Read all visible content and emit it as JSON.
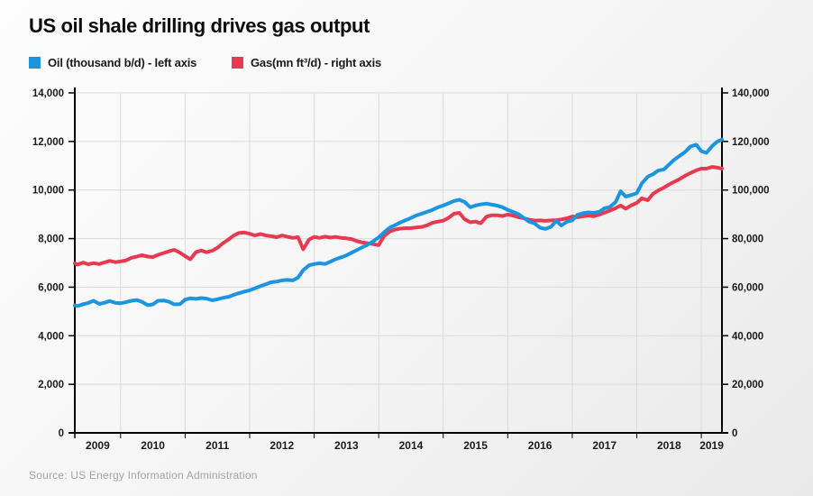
{
  "title": "US oil shale drilling drives gas output",
  "legend": {
    "items": [
      {
        "label": "Oil (thousand b/d) - left axis",
        "color": "#1b95e0"
      },
      {
        "label": "Gas(mn ft³/d) - right axis",
        "color": "#e73a50"
      }
    ],
    "position": "top-left"
  },
  "source": "Source: US Energy Information Administration",
  "colors": {
    "oil_line": "#1b95e0",
    "gas_line": "#e73a50",
    "axis": "#000000",
    "gridline": "#d9d9d9",
    "tick_text": "#1a1a1a",
    "source_text": "#a3a3a3"
  },
  "chart_data": {
    "type": "line",
    "title": "US oil shale drilling drives gas output",
    "grid": true,
    "legend_position": "top-left",
    "x_axis": {
      "tick_labels": [
        "2009",
        "2010",
        "2011",
        "2012",
        "2013",
        "2014",
        "2015",
        "2016",
        "2017",
        "2018",
        "2019"
      ],
      "gridline_years": [
        2010,
        2011,
        2012,
        2013,
        2014,
        2015,
        2016,
        2017,
        2018,
        2019
      ],
      "domain": [
        2009.29,
        2019.32
      ]
    },
    "left_axis": {
      "label": "Oil (thousand b/d)",
      "range": [
        0,
        14000
      ],
      "tick_values": [
        0,
        2000,
        4000,
        6000,
        8000,
        10000,
        12000,
        14000
      ],
      "tick_labels": [
        "0",
        "2,000",
        "4,000",
        "6,000",
        "8,000",
        "10,000",
        "12,000",
        "14,000"
      ]
    },
    "right_axis": {
      "label": "Gas (mn ft³/d)",
      "range": [
        0,
        140000
      ],
      "tick_values": [
        0,
        20000,
        40000,
        60000,
        80000,
        100000,
        120000,
        140000
      ],
      "tick_labels": [
        "0",
        "20,000",
        "40,000",
        "60,000",
        "80,000",
        "100,000",
        "120,000",
        "140,000"
      ]
    },
    "series": [
      {
        "name": "Gas(mn ft³/d) - right axis",
        "axis": "right",
        "color": "#e73a50",
        "points": [
          [
            2009.29,
            69800
          ],
          [
            2009.33,
            69300
          ],
          [
            2009.42,
            70100
          ],
          [
            2009.5,
            69400
          ],
          [
            2009.58,
            69900
          ],
          [
            2009.67,
            69500
          ],
          [
            2009.75,
            70200
          ],
          [
            2009.83,
            70800
          ],
          [
            2009.92,
            70300
          ],
          [
            2010.0,
            70600
          ],
          [
            2010.08,
            71000
          ],
          [
            2010.17,
            72100
          ],
          [
            2010.25,
            72600
          ],
          [
            2010.33,
            73200
          ],
          [
            2010.42,
            72600
          ],
          [
            2010.5,
            72400
          ],
          [
            2010.58,
            73300
          ],
          [
            2010.67,
            74100
          ],
          [
            2010.75,
            74800
          ],
          [
            2010.83,
            75400
          ],
          [
            2010.92,
            74200
          ],
          [
            2011.0,
            72800
          ],
          [
            2011.08,
            71500
          ],
          [
            2011.17,
            74500
          ],
          [
            2011.25,
            75100
          ],
          [
            2011.33,
            74400
          ],
          [
            2011.42,
            75000
          ],
          [
            2011.5,
            76200
          ],
          [
            2011.58,
            78000
          ],
          [
            2011.67,
            79600
          ],
          [
            2011.75,
            81200
          ],
          [
            2011.83,
            82300
          ],
          [
            2011.92,
            82500
          ],
          [
            2012.0,
            82000
          ],
          [
            2012.08,
            81300
          ],
          [
            2012.17,
            81900
          ],
          [
            2012.25,
            81300
          ],
          [
            2012.33,
            81000
          ],
          [
            2012.42,
            80600
          ],
          [
            2012.5,
            81300
          ],
          [
            2012.58,
            80800
          ],
          [
            2012.67,
            80300
          ],
          [
            2012.75,
            80600
          ],
          [
            2012.83,
            75600
          ],
          [
            2012.92,
            79600
          ],
          [
            2013.0,
            80700
          ],
          [
            2013.08,
            80300
          ],
          [
            2013.17,
            80800
          ],
          [
            2013.25,
            80400
          ],
          [
            2013.33,
            80700
          ],
          [
            2013.42,
            80300
          ],
          [
            2013.5,
            80100
          ],
          [
            2013.58,
            79800
          ],
          [
            2013.67,
            78900
          ],
          [
            2013.75,
            78400
          ],
          [
            2013.83,
            78100
          ],
          [
            2013.92,
            77700
          ],
          [
            2014.0,
            77300
          ],
          [
            2014.08,
            81000
          ],
          [
            2014.17,
            82900
          ],
          [
            2014.25,
            83700
          ],
          [
            2014.33,
            84100
          ],
          [
            2014.42,
            84300
          ],
          [
            2014.5,
            84300
          ],
          [
            2014.58,
            84600
          ],
          [
            2014.67,
            84800
          ],
          [
            2014.75,
            85500
          ],
          [
            2014.83,
            86500
          ],
          [
            2014.92,
            87000
          ],
          [
            2015.0,
            87400
          ],
          [
            2015.08,
            88500
          ],
          [
            2015.17,
            90300
          ],
          [
            2015.25,
            90600
          ],
          [
            2015.33,
            88000
          ],
          [
            2015.42,
            86700
          ],
          [
            2015.5,
            87000
          ],
          [
            2015.58,
            86300
          ],
          [
            2015.67,
            89000
          ],
          [
            2015.75,
            89600
          ],
          [
            2015.83,
            89600
          ],
          [
            2015.92,
            89300
          ],
          [
            2016.0,
            89900
          ],
          [
            2016.08,
            89500
          ],
          [
            2016.17,
            88800
          ],
          [
            2016.25,
            88400
          ],
          [
            2016.33,
            87800
          ],
          [
            2016.42,
            87400
          ],
          [
            2016.5,
            87500
          ],
          [
            2016.58,
            87300
          ],
          [
            2016.67,
            87500
          ],
          [
            2016.75,
            87600
          ],
          [
            2016.83,
            87900
          ],
          [
            2016.92,
            88400
          ],
          [
            2017.0,
            89100
          ],
          [
            2017.08,
            88800
          ],
          [
            2017.17,
            89200
          ],
          [
            2017.25,
            89500
          ],
          [
            2017.33,
            89200
          ],
          [
            2017.42,
            89900
          ],
          [
            2017.5,
            90700
          ],
          [
            2017.58,
            91500
          ],
          [
            2017.67,
            92500
          ],
          [
            2017.75,
            93600
          ],
          [
            2017.83,
            92300
          ],
          [
            2017.92,
            93800
          ],
          [
            2018.0,
            94700
          ],
          [
            2018.08,
            96600
          ],
          [
            2018.17,
            95800
          ],
          [
            2018.25,
            98400
          ],
          [
            2018.33,
            99800
          ],
          [
            2018.42,
            101000
          ],
          [
            2018.5,
            102300
          ],
          [
            2018.58,
            103400
          ],
          [
            2018.67,
            104600
          ],
          [
            2018.75,
            105900
          ],
          [
            2018.83,
            107000
          ],
          [
            2018.92,
            108100
          ],
          [
            2019.0,
            108800
          ],
          [
            2019.08,
            108800
          ],
          [
            2019.17,
            109500
          ],
          [
            2019.25,
            109200
          ],
          [
            2019.32,
            108800
          ]
        ]
      },
      {
        "name": "Oil (thousand b/d) - left axis",
        "axis": "left",
        "color": "#1b95e0",
        "points": [
          [
            2009.29,
            5250
          ],
          [
            2009.33,
            5220
          ],
          [
            2009.42,
            5300
          ],
          [
            2009.5,
            5350
          ],
          [
            2009.58,
            5440
          ],
          [
            2009.67,
            5310
          ],
          [
            2009.75,
            5360
          ],
          [
            2009.83,
            5430
          ],
          [
            2009.92,
            5350
          ],
          [
            2010.0,
            5340
          ],
          [
            2010.08,
            5380
          ],
          [
            2010.17,
            5440
          ],
          [
            2010.25,
            5470
          ],
          [
            2010.33,
            5400
          ],
          [
            2010.42,
            5260
          ],
          [
            2010.5,
            5290
          ],
          [
            2010.58,
            5440
          ],
          [
            2010.67,
            5450
          ],
          [
            2010.75,
            5400
          ],
          [
            2010.83,
            5290
          ],
          [
            2010.92,
            5300
          ],
          [
            2011.0,
            5490
          ],
          [
            2011.08,
            5540
          ],
          [
            2011.17,
            5520
          ],
          [
            2011.25,
            5550
          ],
          [
            2011.33,
            5530
          ],
          [
            2011.42,
            5460
          ],
          [
            2011.5,
            5500
          ],
          [
            2011.58,
            5560
          ],
          [
            2011.67,
            5600
          ],
          [
            2011.75,
            5680
          ],
          [
            2011.83,
            5750
          ],
          [
            2011.92,
            5820
          ],
          [
            2012.0,
            5870
          ],
          [
            2012.08,
            5950
          ],
          [
            2012.17,
            6050
          ],
          [
            2012.25,
            6120
          ],
          [
            2012.33,
            6200
          ],
          [
            2012.42,
            6230
          ],
          [
            2012.5,
            6280
          ],
          [
            2012.58,
            6300
          ],
          [
            2012.67,
            6280
          ],
          [
            2012.75,
            6400
          ],
          [
            2012.83,
            6700
          ],
          [
            2012.92,
            6900
          ],
          [
            2013.0,
            6950
          ],
          [
            2013.08,
            6980
          ],
          [
            2013.17,
            6960
          ],
          [
            2013.25,
            7050
          ],
          [
            2013.33,
            7150
          ],
          [
            2013.42,
            7230
          ],
          [
            2013.5,
            7310
          ],
          [
            2013.58,
            7420
          ],
          [
            2013.67,
            7540
          ],
          [
            2013.75,
            7650
          ],
          [
            2013.83,
            7750
          ],
          [
            2013.92,
            7900
          ],
          [
            2014.0,
            8050
          ],
          [
            2014.08,
            8250
          ],
          [
            2014.17,
            8450
          ],
          [
            2014.25,
            8550
          ],
          [
            2014.33,
            8660
          ],
          [
            2014.42,
            8760
          ],
          [
            2014.5,
            8850
          ],
          [
            2014.58,
            8950
          ],
          [
            2014.67,
            9030
          ],
          [
            2014.75,
            9100
          ],
          [
            2014.83,
            9180
          ],
          [
            2014.92,
            9290
          ],
          [
            2015.0,
            9360
          ],
          [
            2015.08,
            9450
          ],
          [
            2015.17,
            9550
          ],
          [
            2015.25,
            9600
          ],
          [
            2015.33,
            9510
          ],
          [
            2015.42,
            9290
          ],
          [
            2015.5,
            9360
          ],
          [
            2015.58,
            9410
          ],
          [
            2015.67,
            9440
          ],
          [
            2015.75,
            9400
          ],
          [
            2015.83,
            9360
          ],
          [
            2015.92,
            9290
          ],
          [
            2016.0,
            9180
          ],
          [
            2016.08,
            9100
          ],
          [
            2016.17,
            9000
          ],
          [
            2016.25,
            8850
          ],
          [
            2016.33,
            8700
          ],
          [
            2016.42,
            8620
          ],
          [
            2016.5,
            8450
          ],
          [
            2016.58,
            8400
          ],
          [
            2016.67,
            8480
          ],
          [
            2016.75,
            8730
          ],
          [
            2016.83,
            8540
          ],
          [
            2016.92,
            8700
          ],
          [
            2017.0,
            8750
          ],
          [
            2017.08,
            8980
          ],
          [
            2017.17,
            9050
          ],
          [
            2017.25,
            9080
          ],
          [
            2017.33,
            9060
          ],
          [
            2017.42,
            9100
          ],
          [
            2017.5,
            9250
          ],
          [
            2017.58,
            9300
          ],
          [
            2017.67,
            9500
          ],
          [
            2017.75,
            9950
          ],
          [
            2017.83,
            9730
          ],
          [
            2017.92,
            9800
          ],
          [
            2018.0,
            9870
          ],
          [
            2018.08,
            10280
          ],
          [
            2018.17,
            10550
          ],
          [
            2018.25,
            10650
          ],
          [
            2018.33,
            10800
          ],
          [
            2018.42,
            10850
          ],
          [
            2018.5,
            11050
          ],
          [
            2018.58,
            11250
          ],
          [
            2018.67,
            11420
          ],
          [
            2018.75,
            11570
          ],
          [
            2018.83,
            11790
          ],
          [
            2018.92,
            11870
          ],
          [
            2019.0,
            11600
          ],
          [
            2019.08,
            11530
          ],
          [
            2019.17,
            11820
          ],
          [
            2019.25,
            12000
          ],
          [
            2019.32,
            12080
          ]
        ]
      }
    ]
  }
}
